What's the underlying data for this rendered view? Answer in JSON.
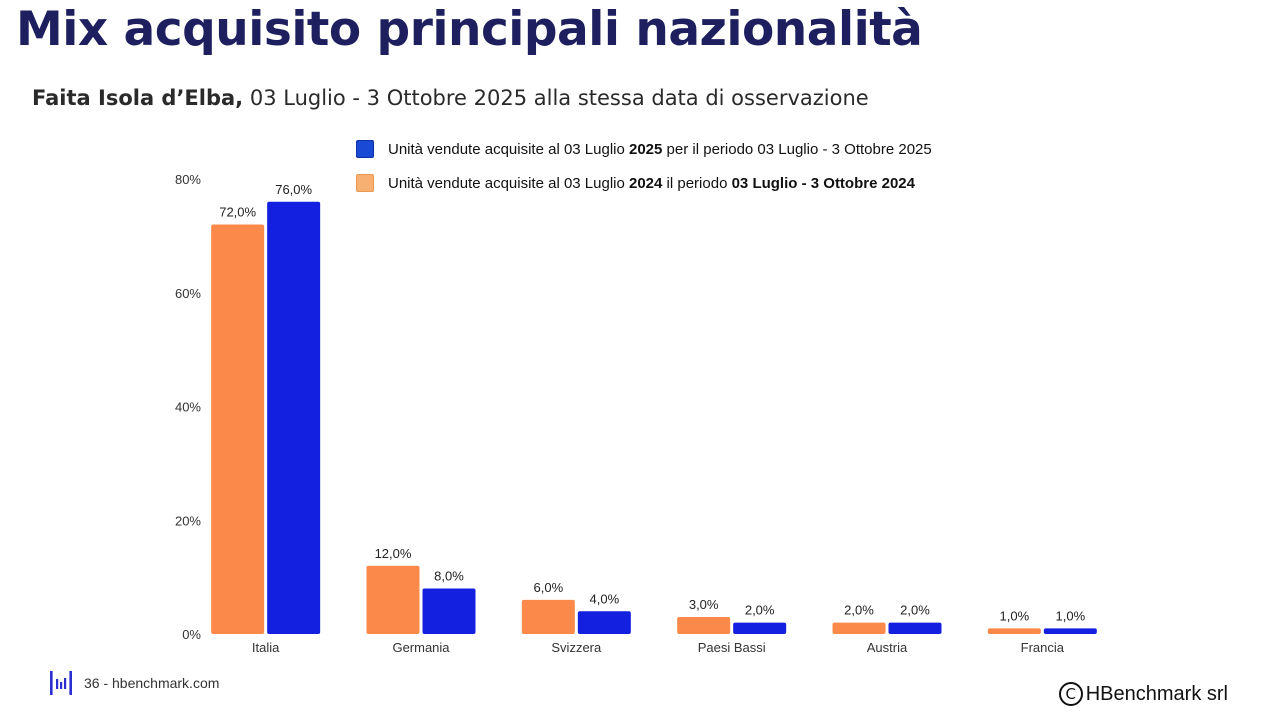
{
  "page": {
    "title": "Mix acquisito principali nazionalità",
    "subtitle_bold": "Faita Isola d’Elba,",
    "subtitle_rest": " 03 Luglio - 3 Ottobre 2025 alla stessa data di osservazione"
  },
  "legend": [
    {
      "color": "#1a49d6",
      "parts": [
        {
          "text": "Unità vendute acquisite al 03 Luglio ",
          "bold": false
        },
        {
          "text": "2025",
          "bold": true
        },
        {
          "text": " per il periodo 03 Luglio - 3 Ottobre 2025",
          "bold": false
        }
      ]
    },
    {
      "color": "#f7b072",
      "parts": [
        {
          "text": "Unità vendute acquisite al 03 Luglio ",
          "bold": false
        },
        {
          "text": "2024",
          "bold": true
        },
        {
          "text": " il periodo ",
          "bold": false
        },
        {
          "text": "03 Luglio - 3 Ottobre 2024",
          "bold": true
        }
      ]
    }
  ],
  "footer": {
    "page_number": "36",
    "text": "36 - hbenchmark.com",
    "logo_icon": "hbenchmark-logo-icon",
    "copyright_icon": "copyright-icon",
    "copyright_text": "HBenchmark srl"
  },
  "chart_data": {
    "type": "bar",
    "categories": [
      "Italia",
      "Germania",
      "Svizzera",
      "Paesi Bassi",
      "Austria",
      "Francia"
    ],
    "series": [
      {
        "name": "Unità vendute acquisite al 03 Luglio 2024 il periodo 03 Luglio - 3 Ottobre 2024",
        "color": "#fb8a4a",
        "values": [
          72.0,
          12.0,
          6.0,
          3.0,
          2.0,
          1.0
        ],
        "labels": [
          "72,0%",
          "12,0%",
          "6,0%",
          "3,0%",
          "2,0%",
          "1,0%"
        ]
      },
      {
        "name": "Unità vendute acquisite al 03 Luglio 2025 per il periodo 03 Luglio - 3 Ottobre 2025",
        "color": "#1320df",
        "values": [
          76.0,
          8.0,
          4.0,
          2.0,
          2.0,
          1.0
        ],
        "labels": [
          "76,0%",
          "8,0%",
          "4,0%",
          "2,0%",
          "2,0%",
          "1,0%"
        ]
      }
    ],
    "ylim": [
      0,
      80
    ],
    "yticks": [
      0,
      20,
      40,
      60,
      80
    ],
    "ytick_labels": [
      "0%",
      "20%",
      "40%",
      "60%",
      "80%"
    ],
    "grid": false,
    "legend_position": "top"
  }
}
